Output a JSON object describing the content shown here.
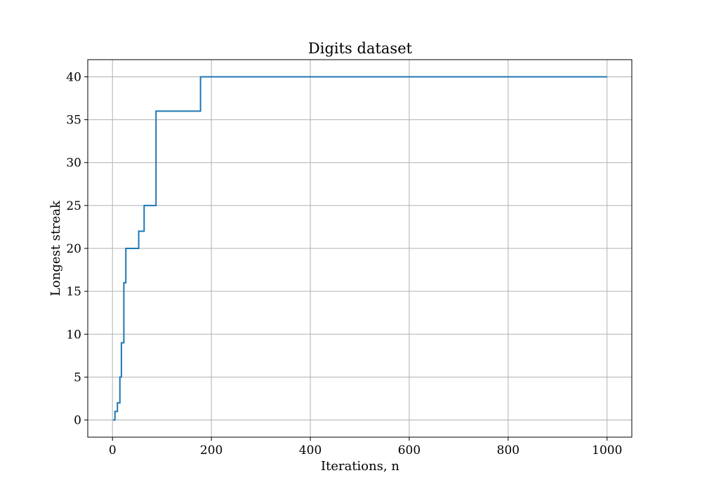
{
  "chart_data": {
    "type": "line",
    "title": "Digits dataset",
    "xlabel": "Iterations, n",
    "ylabel": "Longest streak",
    "xlim": [
      -50,
      1050
    ],
    "ylim": [
      -2,
      42
    ],
    "xticks": [
      0,
      200,
      400,
      600,
      800,
      1000
    ],
    "yticks": [
      0,
      5,
      10,
      15,
      20,
      25,
      30,
      35,
      40
    ],
    "grid": true,
    "step": true,
    "series": [
      {
        "color": "#1f77b4",
        "x": [
          1,
          5,
          10,
          15,
          18,
          23,
          27,
          53,
          59,
          64,
          86,
          88,
          178,
          1000
        ],
        "values": [
          0,
          1,
          2,
          5,
          9,
          16,
          20,
          22,
          22,
          25,
          25,
          36,
          40,
          40
        ]
      }
    ]
  }
}
